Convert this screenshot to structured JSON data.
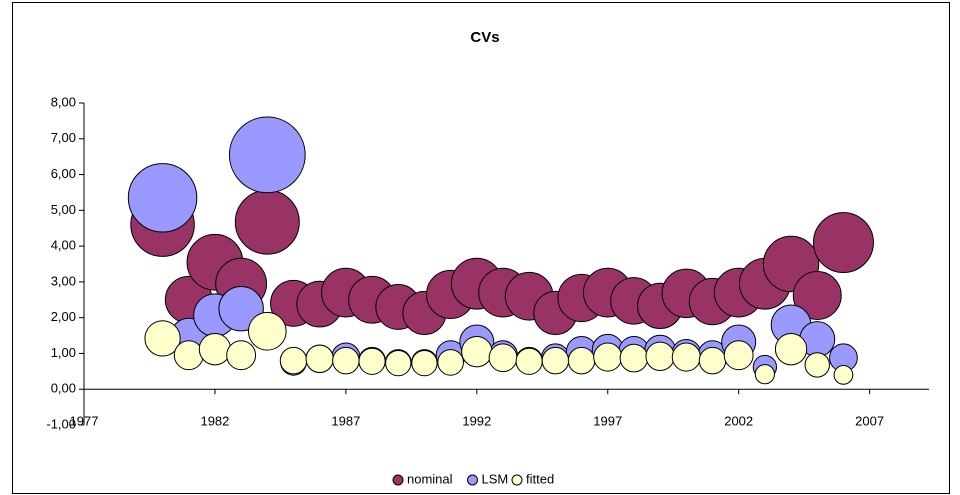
{
  "chart_data": {
    "type": "bubble",
    "title": "CVs",
    "x": [
      1980,
      1981,
      1982,
      1983,
      1984,
      1985,
      1986,
      1987,
      1988,
      1989,
      1990,
      1991,
      1992,
      1993,
      1994,
      1995,
      1996,
      1997,
      1998,
      1999,
      2000,
      2001,
      2002,
      2003,
      2004,
      2005,
      2006
    ],
    "series": [
      {
        "name": "nominal",
        "color": "#993366",
        "values": [
          4.6,
          2.5,
          3.55,
          2.95,
          4.67,
          2.4,
          2.38,
          2.7,
          2.5,
          2.3,
          2.13,
          2.65,
          2.95,
          2.7,
          2.6,
          2.13,
          2.55,
          2.7,
          2.47,
          2.33,
          2.68,
          2.45,
          2.7,
          2.95,
          3.5,
          2.62,
          4.1
        ]
      },
      {
        "name": "LSM",
        "color": "#9999ff",
        "values": [
          5.35,
          1.48,
          2.07,
          2.25,
          6.55,
          0.75,
          0.85,
          0.9,
          0.8,
          0.75,
          0.75,
          0.95,
          1.32,
          0.95,
          0.8,
          0.88,
          1.05,
          1.1,
          1.05,
          1.08,
          0.98,
          0.95,
          1.32,
          0.62,
          1.8,
          1.4,
          0.88
        ]
      },
      {
        "name": "fitted",
        "color": "#ffffcc",
        "values": [
          1.42,
          0.95,
          1.12,
          0.95,
          1.62,
          0.8,
          0.85,
          0.8,
          0.78,
          0.73,
          0.73,
          0.75,
          1.05,
          0.88,
          0.78,
          0.8,
          0.8,
          0.9,
          0.87,
          0.92,
          0.9,
          0.8,
          0.95,
          0.42,
          1.12,
          0.68,
          0.4
        ]
      }
    ],
    "xlim": [
      1977,
      2009
    ],
    "xticks": [
      1977,
      1982,
      1987,
      1992,
      1997,
      2002,
      2007
    ],
    "ylim": [
      -1,
      8
    ],
    "yticks": [
      {
        "value": -1,
        "label": "-1,00"
      },
      {
        "value": 0,
        "label": "0,00"
      },
      {
        "value": 1,
        "label": "1,00"
      },
      {
        "value": 2,
        "label": "2,00"
      },
      {
        "value": 3,
        "label": "3,00"
      },
      {
        "value": 4,
        "label": "4,00"
      },
      {
        "value": 5,
        "label": "5,00"
      },
      {
        "value": 6,
        "label": "6,00"
      },
      {
        "value": 7,
        "label": "7,00"
      },
      {
        "value": 8,
        "label": "8,00"
      }
    ],
    "legend": "bottom"
  }
}
